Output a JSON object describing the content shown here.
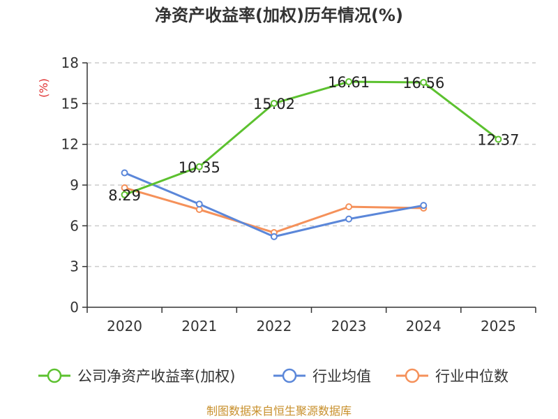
{
  "chart_data": {
    "type": "line",
    "title": "净资产收益率(加权)历年情况(%)",
    "ylabel": "(%)",
    "xlabel": "",
    "categories": [
      "2020",
      "2021",
      "2022",
      "2023",
      "2024",
      "2025"
    ],
    "ylim": [
      0,
      18
    ],
    "yticks": [
      "0",
      "3",
      "6",
      "9",
      "12",
      "15",
      "18"
    ],
    "grid": true,
    "legend_position": "bottom",
    "series": [
      {
        "name": "公司净资产收益率(加权)",
        "color": "#5cc12f",
        "values": [
          8.29,
          10.35,
          15.02,
          16.61,
          16.56,
          12.37
        ],
        "labels": [
          "8.29",
          "10.35",
          "15.02",
          "16.61",
          "16.56",
          "12.37"
        ]
      },
      {
        "name": "行业均值",
        "color": "#5b87d9",
        "values": [
          9.9,
          7.6,
          5.2,
          6.5,
          7.5,
          null
        ]
      },
      {
        "name": "行业中位数",
        "color": "#f5915a",
        "values": [
          8.8,
          7.2,
          5.5,
          7.4,
          7.3,
          null
        ]
      }
    ]
  },
  "source": {
    "text": "制图数据来自恒生聚源数据库",
    "color": "#c8902c"
  },
  "unit_color": "#e03030"
}
